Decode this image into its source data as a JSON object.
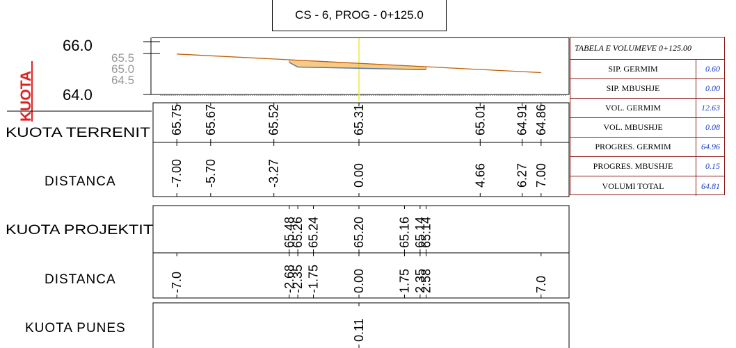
{
  "title": "CS - 6, PROG - 0+125.0",
  "axis": {
    "label": "KUOTA",
    "label_color": "#e02020",
    "top_value": "66.0",
    "bottom_value": "64.0",
    "gray_values": [
      "65.5",
      "65.0",
      "64.5"
    ]
  },
  "profile": {
    "terrain_color": "#c0600a",
    "cut_fill_color": "#f0a020",
    "centerline_color": "#e8e840",
    "terrain": [
      {
        "x": -7.0,
        "z": 65.75
      },
      {
        "x": 7.0,
        "z": 64.86
      }
    ],
    "design": [
      {
        "x": -2.68,
        "z": 65.48
      },
      {
        "x": -2.35,
        "z": 65.26
      },
      {
        "x": 0.0,
        "z": 65.2
      },
      {
        "x": 2.35,
        "z": 65.14
      },
      {
        "x": 2.58,
        "z": 65.14
      }
    ]
  },
  "rows": {
    "terrain_label": "KUOTA TERRENIT",
    "terrain_values": [
      {
        "x": -7.0,
        "text": "65.75"
      },
      {
        "x": -5.7,
        "text": "65.67"
      },
      {
        "x": -3.27,
        "text": "65.52"
      },
      {
        "x": 0.0,
        "text": "65.31"
      },
      {
        "x": 4.66,
        "text": "65.01"
      },
      {
        "x": 6.27,
        "text": "64.91"
      },
      {
        "x": 7.0,
        "text": "64.86"
      }
    ],
    "distance1_label": "DISTANCA",
    "distance1_values": [
      {
        "x": -7.0,
        "text": "-7.00"
      },
      {
        "x": -5.7,
        "text": "-5.70"
      },
      {
        "x": -3.27,
        "text": "-3.27"
      },
      {
        "x": 0.0,
        "text": "0.00"
      },
      {
        "x": 4.66,
        "text": "4.66"
      },
      {
        "x": 6.27,
        "text": "6.27"
      },
      {
        "x": 7.0,
        "text": "7.00"
      }
    ],
    "project_label": "KUOTA PROJEKTIT",
    "project_values": [
      {
        "x": -2.68,
        "text": "65.48"
      },
      {
        "x": -2.35,
        "text": "65.26"
      },
      {
        "x": -1.75,
        "text": "65.24"
      },
      {
        "x": 0.0,
        "text": "65.20"
      },
      {
        "x": 1.75,
        "text": "65.16"
      },
      {
        "x": 2.35,
        "text": "65.14"
      },
      {
        "x": 2.58,
        "text": "65.14"
      }
    ],
    "distance2_label": "DISTANCA",
    "distance2_values": [
      {
        "x": -7.0,
        "text": "-7.0"
      },
      {
        "x": -2.68,
        "text": "-2.68"
      },
      {
        "x": -2.35,
        "text": "-2.35"
      },
      {
        "x": -1.75,
        "text": "-1.75"
      },
      {
        "x": 0.0,
        "text": "0.00"
      },
      {
        "x": 1.75,
        "text": "1.75"
      },
      {
        "x": 2.35,
        "text": "2.35"
      },
      {
        "x": 2.58,
        "text": "2.58"
      },
      {
        "x": 7.0,
        "text": "7.0"
      }
    ],
    "work_label": "KUOTA PUNES",
    "work_values": [
      {
        "x": 0.0,
        "text": "0.11"
      }
    ]
  },
  "volume_table": {
    "header": "TABELA E VOLUMEVE 0+125.00",
    "rows": [
      {
        "label": "SIP. GERMIM",
        "value": "0.60"
      },
      {
        "label": "SIP. MBUSHJE",
        "value": "0.00"
      },
      {
        "label": "VOL. GERMIM",
        "value": "12.63"
      },
      {
        "label": "VOL. MBUSHJE",
        "value": "0.08"
      },
      {
        "label": "PROGRES. GERMIM",
        "value": "64.96"
      },
      {
        "label": "PROGRES. MBUSHJE",
        "value": "0.15"
      },
      {
        "label": "VOLUMI TOTAL",
        "value": "64.81"
      }
    ]
  }
}
